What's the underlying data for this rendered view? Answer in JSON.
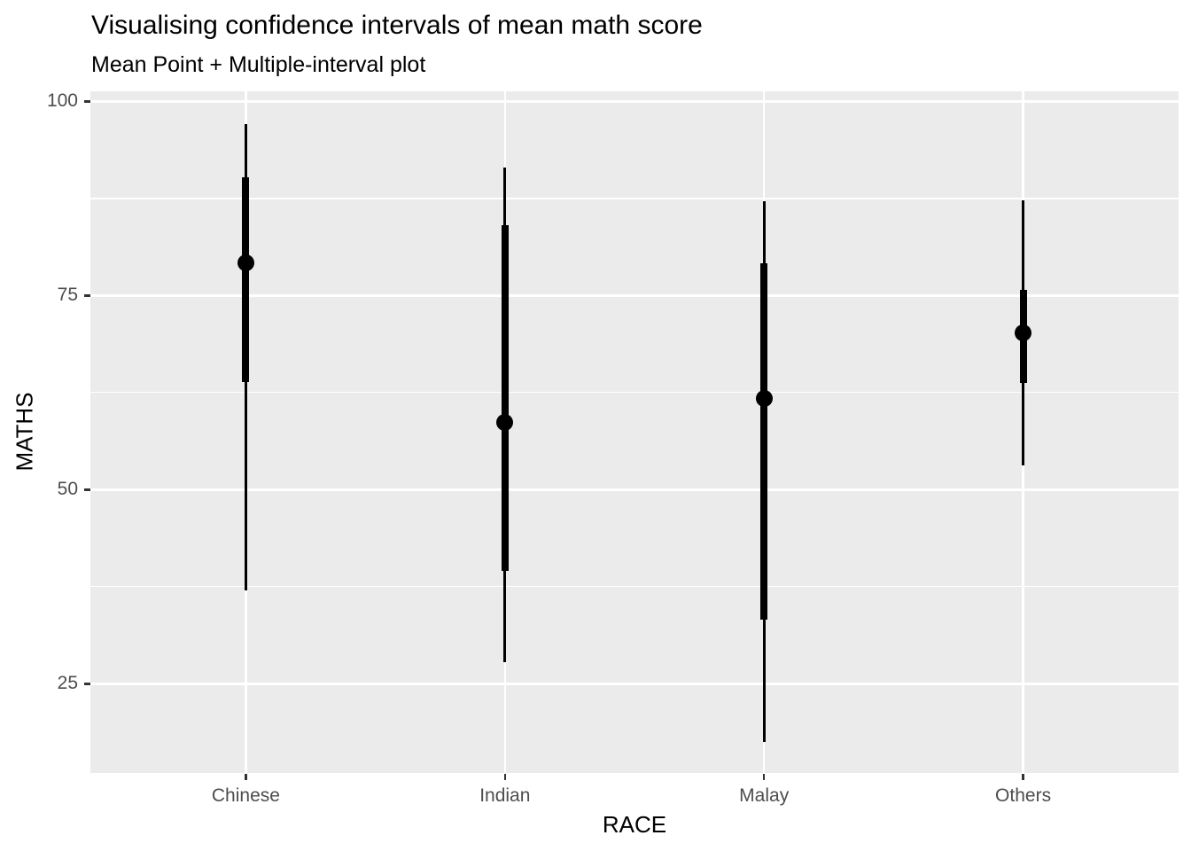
{
  "title": "Visualising confidence intervals of mean math score",
  "subtitle": "Mean Point + Multiple-interval plot",
  "chart_data": {
    "type": "pointinterval",
    "title": "Visualising confidence intervals of mean math score",
    "subtitle": "Mean Point + Multiple-interval plot",
    "xlabel": "RACE",
    "ylabel": "MATHS",
    "categories": [
      "Chinese",
      "Indian",
      "Malay",
      "Others"
    ],
    "series": [
      {
        "category": "Chinese",
        "mean": 79.2,
        "thick_interval": [
          63.9,
          90.2
        ],
        "thin_interval": [
          37.0,
          97.1
        ]
      },
      {
        "category": "Indian",
        "mean": 58.6,
        "thick_interval": [
          39.5,
          84.1
        ],
        "thin_interval": [
          27.8,
          91.5
        ]
      },
      {
        "category": "Malay",
        "mean": 61.7,
        "thick_interval": [
          33.3,
          79.1
        ],
        "thin_interval": [
          17.5,
          87.1
        ]
      },
      {
        "category": "Others",
        "mean": 70.2,
        "thick_interval": [
          63.7,
          75.7
        ],
        "thin_interval": [
          53.1,
          87.2
        ]
      }
    ],
    "y_ticks": [
      25,
      50,
      75,
      100
    ],
    "y_minor_gridlines": [
      37.5,
      62.5,
      87.5
    ],
    "ylim": [
      13.5,
      101.3
    ],
    "grid": "major and minor horizontal, major vertical per category",
    "legend": "none"
  },
  "colors": {
    "page_background": "#ffffff",
    "panel_background": "#ebebeb",
    "grid_major": "#ffffff",
    "grid_minor": "#ffffff",
    "data": "#000000",
    "tick_label": "#4d4d4d",
    "tick_mark": "#333333",
    "title_text": "#000000"
  }
}
